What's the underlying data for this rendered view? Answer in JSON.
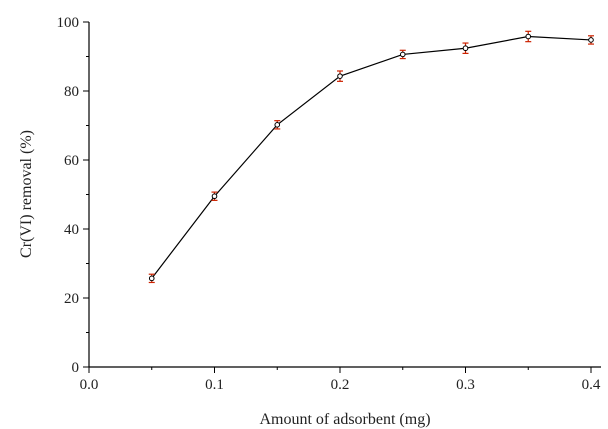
{
  "chart_data": {
    "type": "line",
    "title": "",
    "xlabel": "Amount of adsorbent (mg)",
    "ylabel": "Cr(VI) removal (%)",
    "xlim": [
      0.0,
      0.4
    ],
    "ylim": [
      0,
      100
    ],
    "x_ticks": [
      "0.0",
      "0.1",
      "0.2",
      "0.3",
      "0.4"
    ],
    "y_ticks": [
      "0",
      "20",
      "40",
      "60",
      "80",
      "100"
    ],
    "grid": false,
    "legend": "none",
    "series": [
      {
        "x": [
          0.05,
          0.1,
          0.15,
          0.2,
          0.25,
          0.3,
          0.35,
          0.4
        ],
        "y": [
          25.7,
          49.5,
          70.2,
          84.3,
          90.6,
          92.4,
          95.8,
          94.8
        ],
        "error": [
          1.2,
          1.2,
          1.2,
          1.5,
          1.2,
          1.5,
          1.5,
          1.2
        ],
        "line_color": "#000000",
        "marker_color": "#000000",
        "error_color": "#cc2200"
      }
    ]
  }
}
